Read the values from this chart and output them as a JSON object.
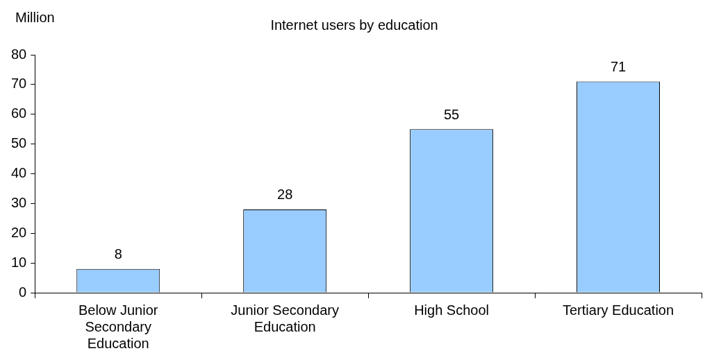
{
  "chart_data": {
    "type": "bar",
    "title": "Internet users by education",
    "ylabel": "Million",
    "categories": [
      "Below Junior Secondary Education",
      "Junior Secondary Education",
      "High School",
      "Tertiary Education"
    ],
    "values": [
      8,
      28,
      55,
      71
    ],
    "color": "#99ccff",
    "ylim": [
      0,
      80
    ],
    "yticks": [
      0,
      10,
      20,
      30,
      40,
      50,
      60,
      70,
      80
    ],
    "grid": false,
    "legend": false,
    "data_labels": true
  }
}
